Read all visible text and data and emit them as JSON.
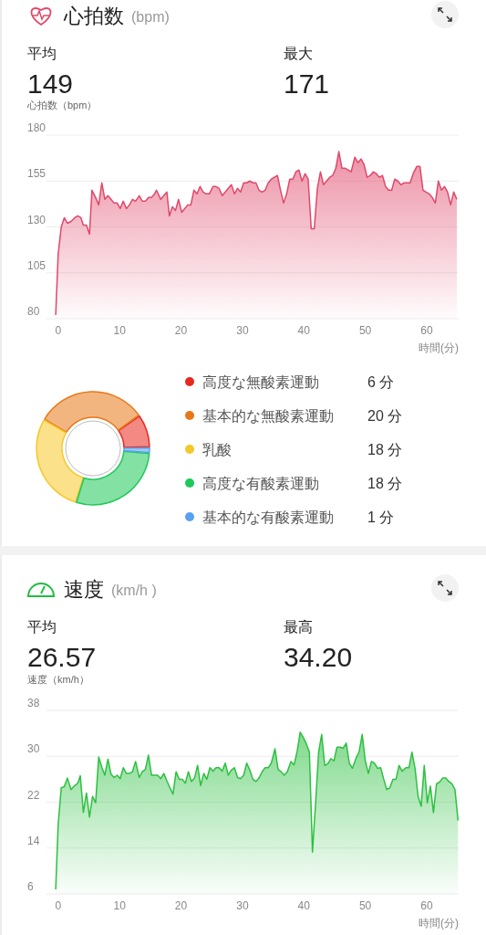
{
  "chart_data": [
    {
      "type": "other",
      "title": "心拍数",
      "subtitle": "(bpm)",
      "annotations": [
        "平均",
        "149",
        "最大",
        "171"
      ]
    },
    {
      "type": "area",
      "ylabel": "心拍数（bpm）",
      "xlabel": "時間(分)",
      "xlim": [
        -1.9,
        65.2
      ],
      "xticks": [
        0,
        10,
        20,
        30,
        40,
        50,
        60
      ],
      "ylim": [
        80,
        180
      ],
      "yticks": [
        80,
        105,
        130,
        155,
        180
      ],
      "grid": "y",
      "x": [
        -0.4,
        0,
        0.5,
        1.0,
        1.5,
        2.1,
        2.7,
        3.2,
        3.7,
        4.1,
        4.6,
        5.1,
        5.5,
        6.1,
        6.6,
        7.1,
        7.6,
        8.1,
        8.6,
        9.1,
        9.6,
        10.1,
        10.6,
        11.1,
        11.6,
        12.1,
        12.6,
        13.2,
        13.7,
        14.2,
        14.7,
        15.2,
        15.7,
        16.0,
        16.7,
        17.2,
        17.7,
        18.1,
        18.6,
        19.1,
        19.6,
        20.1,
        20.6,
        21.1,
        21.6,
        22.1,
        22.6,
        23.1,
        23.6,
        24.1,
        24.6,
        25.2,
        25.7,
        26.2,
        26.7,
        27.2,
        27.7,
        28.2,
        28.7,
        29.2,
        29.7,
        30.2,
        30.7,
        31.2,
        31.7,
        32.2,
        32.7,
        33.2,
        33.7,
        34.2,
        34.7,
        35.2,
        35.7,
        36.2,
        36.7,
        37.2,
        37.7,
        38.2,
        38.7,
        39.2,
        39.7,
        40.2,
        40.7,
        41.2,
        41.7,
        42.2,
        42.7,
        43.2,
        43.7,
        44.2,
        44.7,
        45.2,
        45.7,
        46.2,
        46.7,
        47.2,
        47.7,
        48.3,
        48.8,
        49.3,
        49.8,
        50.3,
        50.8,
        51.3,
        51.8,
        52.3,
        52.8,
        53.3,
        53.8,
        54.3,
        54.8,
        55.3,
        55.8,
        56.3,
        56.8,
        57.3,
        57.8,
        58.4,
        58.9,
        59.4,
        59.9,
        60.4,
        60.9,
        61.4,
        61.9,
        62.4,
        62.9,
        63.4,
        63.9,
        64.4,
        64.9
      ],
      "series": [
        {
          "color": "#e0486a",
          "values": [
            82,
            115,
            130,
            135,
            132,
            133,
            135,
            136,
            135,
            131,
            131,
            126,
            150,
            146,
            142,
            154,
            145,
            147,
            145,
            143,
            143,
            140,
            144,
            140,
            142,
            145,
            144,
            147,
            144,
            144,
            146,
            146,
            148,
            150,
            145,
            147,
            149,
            136,
            141,
            139,
            145,
            138,
            140,
            142,
            142,
            150,
            148,
            152,
            149,
            148,
            148,
            152,
            152,
            151,
            147,
            149,
            151,
            153,
            148,
            151,
            149,
            154,
            154,
            155,
            154,
            154,
            150,
            149,
            150,
            154,
            156,
            157,
            158,
            150,
            143,
            148,
            156,
            156,
            160,
            161,
            155,
            159,
            156,
            129,
            129,
            151,
            160,
            153,
            155,
            157,
            158,
            162,
            171,
            162,
            162,
            161,
            160,
            168,
            165,
            167,
            164,
            157,
            158,
            160,
            159,
            157,
            158,
            152,
            150,
            150,
            156,
            155,
            153,
            154,
            154,
            154,
            159,
            163,
            163,
            150,
            149,
            148,
            146,
            143,
            155,
            150,
            152,
            149,
            142,
            149,
            145
          ]
        }
      ]
    },
    {
      "type": "donut",
      "legend": "right",
      "categories": [
        "高度な無酸素運動",
        "基本的な無酸素運動",
        "乳酸",
        "高度な有酸素運動",
        "基本的な有酸素運動"
      ],
      "values": [
        6,
        20,
        18,
        18,
        1
      ],
      "value_labels": [
        "6 分",
        "20 分",
        "18 分",
        "18 分",
        "1 分"
      ],
      "colors": [
        "#e8281e",
        "#e87817",
        "#f5c82a",
        "#1ec85a",
        "#5aa0f0"
      ]
    },
    {
      "type": "other",
      "title": "速度",
      "subtitle": "(km/h )",
      "annotations": [
        "平均",
        "26.57",
        "最高",
        "34.20"
      ]
    },
    {
      "type": "area",
      "ylabel": "速度（km/h）",
      "xlabel": "時間(分)",
      "xlim": [
        -1.9,
        65.2
      ],
      "xticks": [
        0,
        10,
        20,
        30,
        40,
        50,
        60
      ],
      "ylim": [
        6,
        38
      ],
      "yticks": [
        6,
        14,
        22,
        30,
        38
      ],
      "grid": "y",
      "x": [
        -0.4,
        0,
        0.5,
        1.0,
        1.5,
        2.1,
        2.7,
        3.2,
        3.6,
        4.1,
        4.6,
        5.1,
        5.6,
        6.1,
        6.6,
        7.1,
        7.6,
        8.1,
        8.6,
        9.1,
        9.6,
        10.1,
        10.6,
        11.1,
        11.6,
        12.1,
        12.6,
        13.2,
        13.7,
        14.2,
        14.7,
        15.2,
        15.7,
        16.2,
        16.7,
        17.2,
        17.7,
        18.2,
        18.7,
        19.2,
        19.7,
        20.2,
        20.7,
        21.2,
        21.7,
        22.2,
        22.7,
        23.2,
        23.7,
        24.2,
        24.7,
        25.2,
        25.7,
        26.2,
        26.7,
        27.2,
        27.7,
        28.2,
        28.7,
        29.2,
        29.7,
        30.2,
        30.7,
        31.2,
        31.7,
        32.2,
        32.7,
        33.2,
        33.7,
        34.2,
        34.7,
        35.3,
        35.8,
        36.3,
        36.8,
        37.3,
        37.9,
        38.4,
        38.9,
        39.4,
        39.9,
        40.4,
        40.9,
        41.4,
        41.9,
        42.4,
        42.9,
        43.4,
        43.9,
        44.4,
        44.9,
        45.4,
        45.9,
        46.4,
        46.9,
        47.4,
        47.9,
        48.5,
        49.0,
        49.5,
        50.0,
        50.5,
        51.0,
        51.5,
        52.0,
        52.5,
        53.0,
        53.5,
        54.0,
        54.5,
        55.0,
        55.5,
        56.0,
        56.6,
        57.1,
        57.6,
        58.1,
        58.6,
        59.1,
        59.6,
        60.1,
        60.6,
        61.1,
        61.6,
        62.1,
        62.6,
        63.1,
        63.6,
        64.1,
        64.6,
        65.1
      ],
      "series": [
        {
          "color": "#2cc040",
          "values": [
            6.8,
            18.1,
            24.5,
            24.7,
            26.2,
            24.2,
            24.9,
            25.3,
            26.6,
            20.2,
            23.6,
            19.4,
            23.0,
            21.9,
            29.9,
            28.1,
            26.7,
            29.5,
            26.9,
            26.3,
            26.7,
            26.1,
            28.0,
            27.0,
            27.0,
            27.3,
            29.1,
            26.3,
            27.3,
            27.7,
            30.2,
            26.7,
            26.7,
            26.7,
            26.1,
            27.0,
            25.7,
            24.5,
            23.4,
            27.3,
            26.0,
            26.0,
            25.3,
            27.3,
            25.6,
            26.2,
            28.4,
            24.9,
            27.0,
            26.0,
            28.0,
            27.4,
            28.0,
            28.0,
            27.4,
            28.8,
            26.7,
            27.6,
            28.0,
            26.3,
            26.1,
            26.7,
            28.8,
            27.6,
            26.0,
            25.6,
            26.2,
            27.3,
            28.0,
            28.0,
            28.8,
            31.3,
            27.7,
            27.3,
            26.7,
            27.3,
            29.1,
            28.5,
            30.8,
            34.2,
            33.3,
            32.2,
            30.7,
            13.3,
            21.6,
            30.7,
            33.8,
            28.4,
            28.7,
            29.6,
            29.2,
            31.6,
            31.6,
            31.4,
            32.3,
            28.8,
            27.9,
            29.7,
            30.8,
            33.8,
            29.2,
            27.0,
            29.1,
            28.8,
            27.9,
            28.0,
            26.0,
            24.2,
            24.5,
            26.0,
            26.0,
            28.4,
            27.4,
            28.0,
            28.0,
            30.7,
            27.9,
            23.0,
            21.3,
            28.4,
            21.9,
            24.8,
            20.2,
            25.2,
            25.5,
            26.2,
            26.2,
            25.6,
            25.2,
            24.2,
            18.8
          ]
        }
      ]
    }
  ]
}
